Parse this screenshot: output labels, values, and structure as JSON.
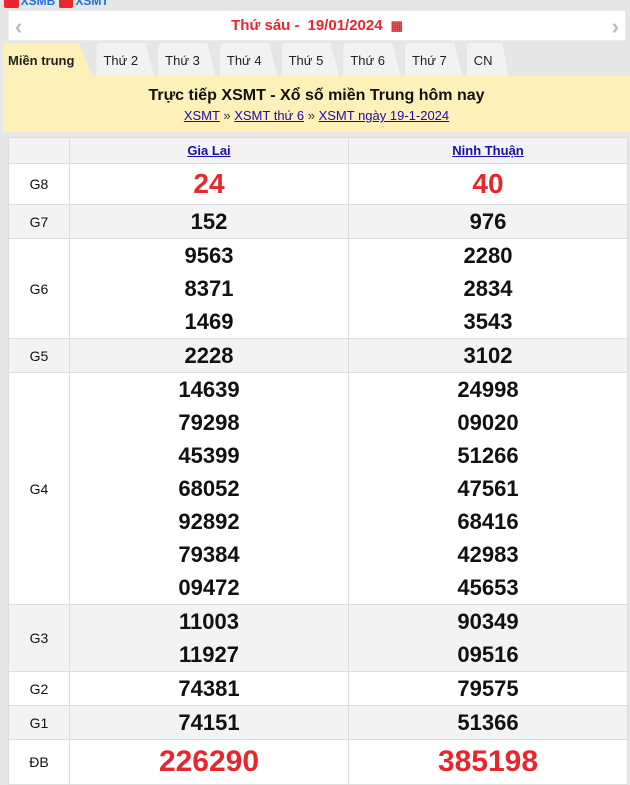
{
  "topstrip": {
    "link1": "XSMB",
    "link2": "XSMT"
  },
  "datebar": {
    "day": "Thứ sáu -",
    "date": "19/01/2024",
    "prev_icon": "chevron-left-icon",
    "next_icon": "chevron-right-icon",
    "calendar_icon": "calendar-icon"
  },
  "tabs": [
    "Miền trung",
    "Thứ 2",
    "Thứ 3",
    "Thứ 4",
    "Thứ 5",
    "Thứ 6",
    "Thứ 7",
    "CN"
  ],
  "band": {
    "title": "Trực tiếp XSMT - Xổ số miền Trung hôm nay",
    "crumbs": [
      "XSMT",
      "XSMT thứ 6",
      "XSMT ngày 19-1-2024"
    ],
    "sep": "»"
  },
  "table": {
    "provinces": [
      "Gia Lai",
      "Ninh Thuận"
    ],
    "rows": [
      {
        "label": "G8",
        "values": [
          [
            "24"
          ],
          [
            "40"
          ]
        ]
      },
      {
        "label": "G7",
        "values": [
          [
            "152"
          ],
          [
            "976"
          ]
        ]
      },
      {
        "label": "G6",
        "values": [
          [
            "9563",
            "8371",
            "1469"
          ],
          [
            "2280",
            "2834",
            "3543"
          ]
        ]
      },
      {
        "label": "G5",
        "values": [
          [
            "2228"
          ],
          [
            "3102"
          ]
        ]
      },
      {
        "label": "G4",
        "values": [
          [
            "14639",
            "79298",
            "45399",
            "68052",
            "92892",
            "79384",
            "09472"
          ],
          [
            "24998",
            "09020",
            "51266",
            "47561",
            "68416",
            "42983",
            "45653"
          ]
        ]
      },
      {
        "label": "G3",
        "values": [
          [
            "11003",
            "11927"
          ],
          [
            "90349",
            "09516"
          ]
        ]
      },
      {
        "label": "G2",
        "values": [
          [
            "74381"
          ],
          [
            "79575"
          ]
        ]
      },
      {
        "label": "G1",
        "values": [
          [
            "74151"
          ],
          [
            "51366"
          ]
        ]
      },
      {
        "label": "ĐB",
        "values": [
          [
            "226290"
          ],
          [
            "385198"
          ]
        ]
      }
    ]
  },
  "colors": {
    "accent": "#e8262d",
    "tab_active": "#fdf0b8",
    "link": "#1a0dab"
  }
}
